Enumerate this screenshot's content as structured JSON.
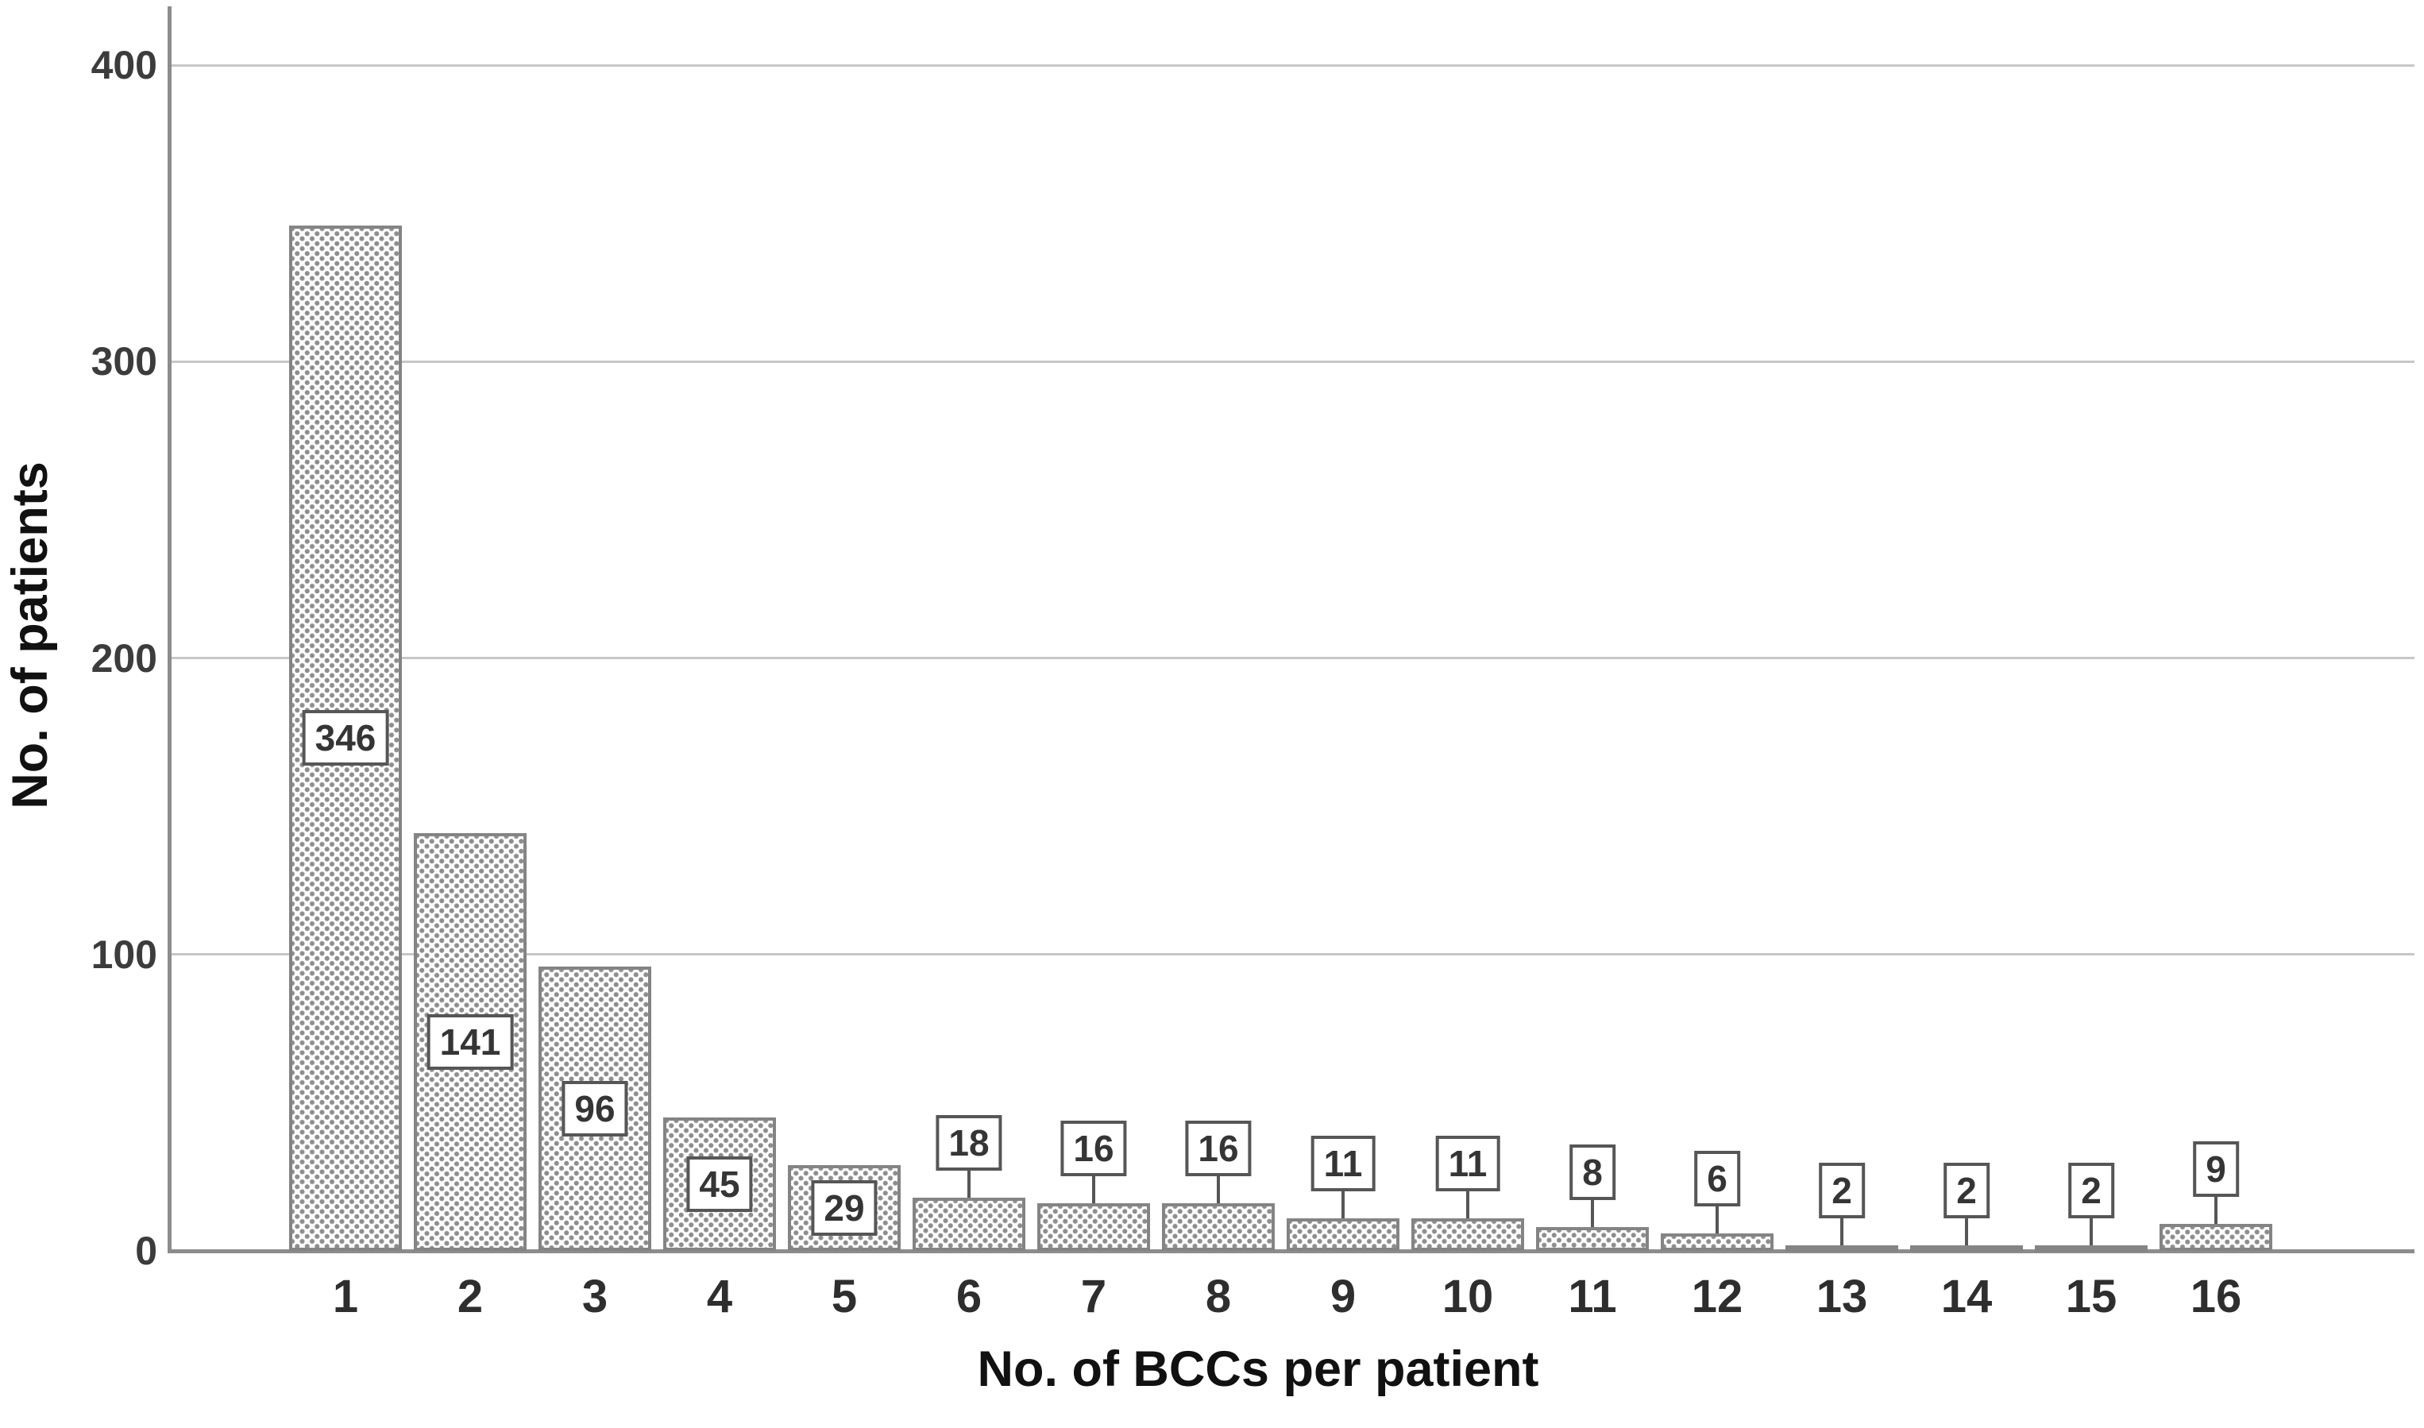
{
  "chart_data": {
    "type": "bar",
    "title": "",
    "xlabel": "No. of BCCs per patient",
    "ylabel": "No. of patients",
    "categories": [
      "1",
      "2",
      "3",
      "4",
      "5",
      "6",
      "7",
      "8",
      "9",
      "10",
      "11",
      "12",
      "13",
      "14",
      "15",
      "16"
    ],
    "values": [
      346,
      141,
      96,
      45,
      29,
      18,
      16,
      16,
      11,
      11,
      8,
      6,
      2,
      2,
      2,
      9
    ],
    "bar_labels": [
      "346",
      "141",
      "96",
      "45",
      "29",
      "18",
      "16",
      "16",
      "11",
      "11",
      "8",
      "6",
      "2",
      "2",
      "2",
      "9"
    ],
    "label_placement": [
      "inside",
      "inside",
      "inside",
      "inside",
      "inside",
      "callout",
      "callout",
      "callout",
      "callout",
      "callout",
      "callout",
      "callout",
      "callout",
      "callout",
      "callout",
      "callout"
    ],
    "yticks": [
      0,
      100,
      200,
      300,
      400
    ],
    "ytick_labels": [
      "0",
      "100",
      "200",
      "300",
      "400"
    ],
    "ylim": [
      0,
      420
    ],
    "grid": true,
    "legend": "none",
    "bar_style": "white fill with gray polka-dot pattern, gray border",
    "value_label_style": "white box with dark gray border; inside bar for large values, callout above bar with connector line for small values",
    "colors": {
      "background": "#ffffff",
      "bar_fill": "#fdfdfd",
      "bar_dot": "#8e8e8e",
      "bar_border": "#848484",
      "gridline": "#c7c7c7",
      "axis_line": "#8c8c8c",
      "ytick_text": "#3c3c3c",
      "xtick_text": "#2e2e2e",
      "axis_title_text": "#111111",
      "value_box_border": "#565656",
      "value_text": "#353535"
    }
  }
}
